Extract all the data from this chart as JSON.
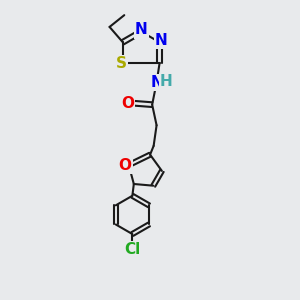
{
  "bg_color": "#e8eaec",
  "bond_color": "#1a1a1a",
  "bond_width": 1.5,
  "atom_colors": {
    "N": "#0000ee",
    "O": "#ee0000",
    "S": "#aaaa00",
    "Cl": "#22aa22",
    "C": "#1a1a1a",
    "H": "#44aaaa"
  },
  "font_size": 10
}
